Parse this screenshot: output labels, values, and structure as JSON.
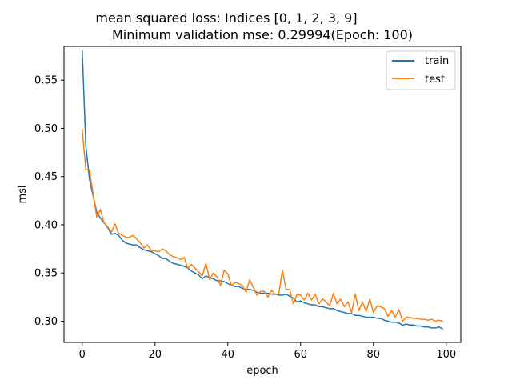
{
  "chart_data": {
    "type": "line",
    "title_line1": "mean squared loss: Indices [0, 1, 2, 3, 9]",
    "title_line2": "Minimum validation mse: 0.29994(Epoch: 100)",
    "xlabel": "epoch",
    "ylabel": "msl",
    "xlim": [
      -5,
      104
    ],
    "ylim": [
      0.278,
      0.585
    ],
    "xticks": [
      0,
      20,
      40,
      60,
      80,
      100
    ],
    "xtick_labels": [
      "0",
      "20",
      "40",
      "60",
      "80",
      "100"
    ],
    "yticks": [
      0.3,
      0.35,
      0.4,
      0.45,
      0.5,
      0.55
    ],
    "ytick_labels": [
      "0.30",
      "0.35",
      "0.40",
      "0.45",
      "0.50",
      "0.55"
    ],
    "grid": false,
    "legend_position": "top-right",
    "series": [
      {
        "name": "train",
        "color": "#1f77b4",
        "x": [
          0,
          1,
          2,
          3,
          4,
          5,
          6,
          7,
          8,
          9,
          10,
          11,
          12,
          13,
          14,
          15,
          16,
          17,
          18,
          19,
          20,
          21,
          22,
          23,
          24,
          25,
          26,
          27,
          28,
          29,
          30,
          31,
          32,
          33,
          34,
          35,
          36,
          37,
          38,
          39,
          40,
          41,
          42,
          43,
          44,
          45,
          46,
          47,
          48,
          49,
          50,
          51,
          52,
          53,
          54,
          55,
          56,
          57,
          58,
          59,
          60,
          61,
          62,
          63,
          64,
          65,
          66,
          67,
          68,
          69,
          70,
          71,
          72,
          73,
          74,
          75,
          76,
          77,
          78,
          79,
          80,
          81,
          82,
          83,
          84,
          85,
          86,
          87,
          88,
          89,
          90,
          91,
          92,
          93,
          94,
          95,
          96,
          97,
          98,
          99
        ],
        "values": [
          0.581,
          0.482,
          0.447,
          0.43,
          0.413,
          0.407,
          0.402,
          0.397,
          0.39,
          0.391,
          0.389,
          0.384,
          0.381,
          0.38,
          0.379,
          0.379,
          0.376,
          0.374,
          0.373,
          0.372,
          0.37,
          0.368,
          0.365,
          0.365,
          0.362,
          0.36,
          0.359,
          0.358,
          0.357,
          0.355,
          0.352,
          0.35,
          0.348,
          0.344,
          0.347,
          0.345,
          0.344,
          0.342,
          0.342,
          0.341,
          0.339,
          0.337,
          0.336,
          0.336,
          0.334,
          0.333,
          0.333,
          0.332,
          0.33,
          0.329,
          0.329,
          0.329,
          0.328,
          0.328,
          0.327,
          0.327,
          0.328,
          0.326,
          0.324,
          0.32,
          0.321,
          0.319,
          0.318,
          0.317,
          0.317,
          0.315,
          0.315,
          0.314,
          0.313,
          0.313,
          0.311,
          0.31,
          0.309,
          0.308,
          0.308,
          0.306,
          0.306,
          0.305,
          0.304,
          0.304,
          0.304,
          0.303,
          0.303,
          0.301,
          0.3,
          0.299,
          0.299,
          0.298,
          0.296,
          0.297,
          0.296,
          0.296,
          0.295,
          0.295,
          0.294,
          0.294,
          0.293,
          0.293,
          0.294,
          0.292
        ]
      },
      {
        "name": "test",
        "color": "#ff7f0e",
        "x": [
          0,
          1,
          2,
          3,
          4,
          5,
          6,
          7,
          8,
          9,
          10,
          11,
          12,
          13,
          14,
          15,
          16,
          17,
          18,
          19,
          20,
          21,
          22,
          23,
          24,
          25,
          26,
          27,
          28,
          29,
          30,
          31,
          32,
          33,
          34,
          35,
          36,
          37,
          38,
          39,
          40,
          41,
          42,
          43,
          44,
          45,
          46,
          47,
          48,
          49,
          50,
          51,
          52,
          53,
          54,
          55,
          56,
          57,
          58,
          59,
          60,
          61,
          62,
          63,
          64,
          65,
          66,
          67,
          68,
          69,
          70,
          71,
          72,
          73,
          74,
          75,
          76,
          77,
          78,
          79,
          80,
          81,
          82,
          83,
          84,
          85,
          86,
          87,
          88,
          89,
          90,
          91,
          92,
          93,
          94,
          95,
          96,
          97,
          98,
          99
        ],
        "values": [
          0.499,
          0.457,
          0.457,
          0.432,
          0.408,
          0.416,
          0.402,
          0.398,
          0.392,
          0.401,
          0.391,
          0.389,
          0.387,
          0.387,
          0.389,
          0.385,
          0.381,
          0.376,
          0.379,
          0.373,
          0.373,
          0.372,
          0.375,
          0.373,
          0.369,
          0.367,
          0.366,
          0.364,
          0.366,
          0.355,
          0.359,
          0.355,
          0.351,
          0.347,
          0.36,
          0.343,
          0.35,
          0.346,
          0.337,
          0.353,
          0.349,
          0.337,
          0.34,
          0.339,
          0.337,
          0.33,
          0.343,
          0.335,
          0.327,
          0.331,
          0.331,
          0.325,
          0.332,
          0.328,
          0.328,
          0.353,
          0.333,
          0.333,
          0.318,
          0.328,
          0.327,
          0.322,
          0.329,
          0.322,
          0.328,
          0.318,
          0.323,
          0.32,
          0.316,
          0.329,
          0.318,
          0.323,
          0.315,
          0.32,
          0.309,
          0.328,
          0.311,
          0.32,
          0.31,
          0.323,
          0.309,
          0.316,
          0.315,
          0.313,
          0.305,
          0.311,
          0.304,
          0.312,
          0.3,
          0.304,
          0.304,
          0.303,
          0.303,
          0.302,
          0.302,
          0.301,
          0.302,
          0.3,
          0.301,
          0.3
        ]
      }
    ]
  }
}
